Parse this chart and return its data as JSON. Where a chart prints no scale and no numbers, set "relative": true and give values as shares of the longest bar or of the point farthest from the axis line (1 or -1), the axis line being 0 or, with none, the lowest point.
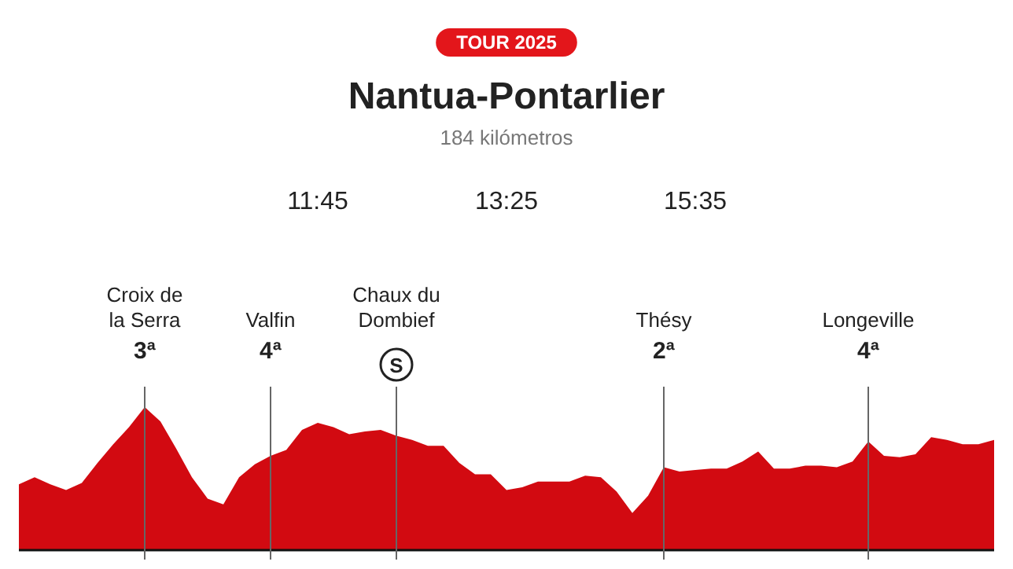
{
  "chart_data": {
    "type": "area",
    "title": "Nantua-Pontarlier",
    "subtitle": "184 kilómetros",
    "relative": true,
    "categories": [
      null,
      null,
      null,
      null,
      null,
      null,
      null,
      null,
      "Croix de la Serra",
      null,
      null,
      null,
      null,
      null,
      null,
      null,
      "Valfin",
      null,
      null,
      null,
      null,
      null,
      null,
      null,
      "Chaux du Dombief",
      null,
      null,
      null,
      null,
      null,
      null,
      null,
      null,
      null,
      null,
      null,
      null,
      null,
      null,
      null,
      null,
      "Thésy",
      null,
      null,
      null,
      null,
      null,
      null,
      null,
      null,
      null,
      null,
      null,
      null,
      "Longeville",
      null,
      null,
      null,
      null,
      null,
      null,
      null,
      null
    ],
    "annotations": [
      "TOUR 2025",
      "11:45",
      "13:25",
      "15:35",
      "3ª",
      "4ª",
      "S",
      "2ª",
      "4ª"
    ],
    "grid": "x",
    "series": [
      {
        "color": "#d20a11",
        "values": [
          0.46,
          0.51,
          0.46,
          0.42,
          0.47,
          0.61,
          0.74,
          0.86,
          1.0,
          0.9,
          0.71,
          0.51,
          0.36,
          0.32,
          0.51,
          0.6,
          0.66,
          0.7,
          0.84,
          0.89,
          0.86,
          0.81,
          0.83,
          0.84,
          0.8,
          0.77,
          0.73,
          0.73,
          0.61,
          0.53,
          0.53,
          0.42,
          0.44,
          0.48,
          0.48,
          0.48,
          0.52,
          0.51,
          0.41,
          0.26,
          0.38,
          0.58,
          0.55,
          0.56,
          0.57,
          0.57,
          0.62,
          0.69,
          0.57,
          0.57,
          0.59,
          0.59,
          0.58,
          0.62,
          0.76,
          0.66,
          0.65,
          0.67,
          0.79,
          0.77,
          0.74,
          0.74,
          0.77
        ]
      }
    ]
  }
}
